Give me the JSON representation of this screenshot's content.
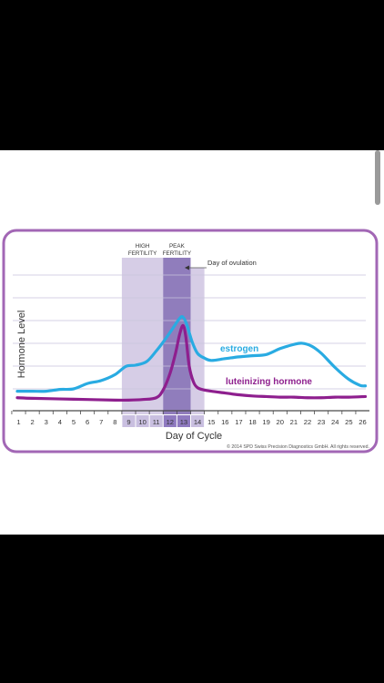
{
  "chart_data": {
    "type": "line",
    "xlabel": "Day of Cycle",
    "ylabel": "Hormone Level",
    "x": [
      1,
      2,
      3,
      4,
      5,
      6,
      7,
      8,
      9,
      10,
      11,
      12,
      13,
      14,
      15,
      16,
      17,
      18,
      19,
      20,
      21,
      22,
      23,
      24,
      25,
      26
    ],
    "x_ticks": [
      "1",
      "2",
      "3",
      "4",
      "5",
      "6",
      "7",
      "8",
      "9",
      "10",
      "11",
      "12",
      "13",
      "14",
      "15",
      "16",
      "17",
      "18",
      "19",
      "20",
      "21",
      "22",
      "23",
      "24",
      "25",
      "26"
    ],
    "ylim": [
      0,
      10
    ],
    "grid": true,
    "series": [
      {
        "name": "estrogen",
        "color": "#29abe2",
        "points": [
          [
            0.9,
            0.8
          ],
          [
            2,
            0.8
          ],
          [
            3,
            0.8
          ],
          [
            4,
            0.95
          ],
          [
            5,
            1.0
          ],
          [
            6,
            1.45
          ],
          [
            7,
            1.7
          ],
          [
            8,
            2.2
          ],
          [
            8.8,
            2.9
          ],
          [
            9.5,
            3.0
          ],
          [
            10.3,
            3.3
          ],
          [
            11,
            4.2
          ],
          [
            11.6,
            5.1
          ],
          [
            12.2,
            6.1
          ],
          [
            12.6,
            6.8
          ],
          [
            12.9,
            7.1
          ],
          [
            13.2,
            6.5
          ],
          [
            13.6,
            5.0
          ],
          [
            14,
            4.0
          ],
          [
            14.5,
            3.6
          ],
          [
            15,
            3.4
          ],
          [
            16,
            3.55
          ],
          [
            17,
            3.7
          ],
          [
            18,
            3.8
          ],
          [
            19,
            3.9
          ],
          [
            20,
            4.4
          ],
          [
            21,
            4.75
          ],
          [
            21.6,
            4.85
          ],
          [
            22.3,
            4.6
          ],
          [
            23,
            4.0
          ],
          [
            24,
            2.8
          ],
          [
            25,
            1.8
          ],
          [
            25.8,
            1.3
          ],
          [
            26.2,
            1.25
          ]
        ]
      },
      {
        "name": "luteinizing hormone",
        "color": "#8e1f8e",
        "points": [
          [
            0.9,
            0.25
          ],
          [
            2,
            0.2
          ],
          [
            4,
            0.15
          ],
          [
            6,
            0.1
          ],
          [
            8,
            0.05
          ],
          [
            9,
            0.05
          ],
          [
            10,
            0.1
          ],
          [
            11,
            0.25
          ],
          [
            11.5,
            0.9
          ],
          [
            12,
            2.3
          ],
          [
            12.4,
            4.0
          ],
          [
            12.7,
            5.6
          ],
          [
            12.95,
            6.35
          ],
          [
            13.15,
            5.4
          ],
          [
            13.4,
            2.9
          ],
          [
            13.7,
            1.6
          ],
          [
            14,
            1.1
          ],
          [
            14.5,
            0.9
          ],
          [
            15,
            0.8
          ],
          [
            16,
            0.65
          ],
          [
            17,
            0.5
          ],
          [
            18,
            0.4
          ],
          [
            19,
            0.35
          ],
          [
            20,
            0.3
          ],
          [
            21,
            0.3
          ],
          [
            22,
            0.25
          ],
          [
            23,
            0.25
          ],
          [
            24,
            0.3
          ],
          [
            25,
            0.3
          ],
          [
            26.2,
            0.35
          ]
        ]
      }
    ],
    "bands": [
      {
        "days": [
          9,
          11
        ],
        "label_lines": [
          "HIGH",
          "FERTILITY"
        ],
        "color": "#cfc4e2"
      },
      {
        "days": [
          12,
          13
        ],
        "label_lines": [
          "PEAK",
          "FERTILITY"
        ],
        "color": "#7d66b0"
      },
      {
        "days": [
          14,
          14
        ],
        "label_lines": [],
        "color": "#cfc4e2"
      }
    ],
    "annotations": {
      "ovulation": "Day of ovulation",
      "ovulation_day": 13,
      "copyright": "© 2014 SPD Swiss Precision Diagnostics GmbH. All rights reserved."
    },
    "colors": {
      "frame": "#a267b5",
      "grid": "#c8c3dc",
      "axis": "#4a4a4a",
      "band_light": "#cfc4e2",
      "band_dark": "#7d66b0",
      "tick_box_light": "#c9bfe0",
      "tick_box_dark": "#8f7ac0"
    }
  }
}
